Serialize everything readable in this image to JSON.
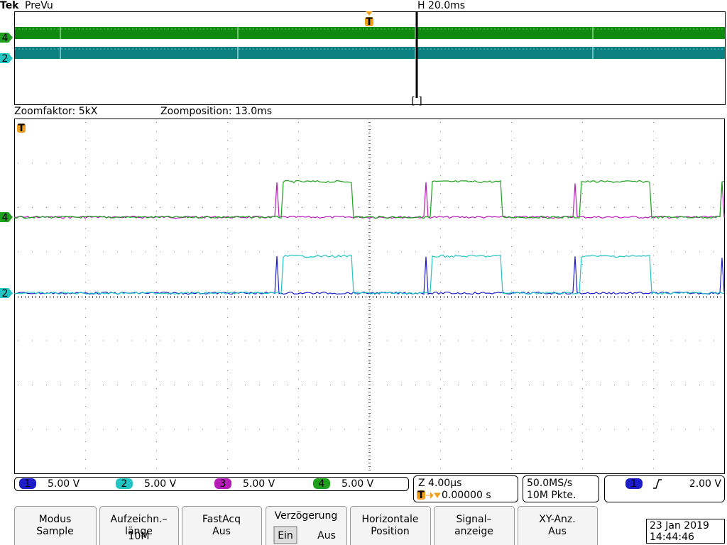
{
  "header": {
    "brand": "Tek",
    "mode": "PreVu",
    "horizontal": "H 20.0ms",
    "trigger_marker": "T"
  },
  "zoom": {
    "factor": "Zoomfaktor: 5kX",
    "position": "Zoomposition: 13.0ms"
  },
  "channels": [
    {
      "number": "1",
      "scale": "5.00 V",
      "color": "#1c1cc8"
    },
    {
      "number": "2",
      "scale": "5.00 V",
      "color": "#22c4c4"
    },
    {
      "number": "3",
      "scale": "5.00 V",
      "color": "#b81cb8"
    },
    {
      "number": "4",
      "scale": "5.00 V",
      "color": "#1ea01e"
    }
  ],
  "status": {
    "zoom_scale": "Z 4.00µs",
    "trigger_position": "0.00000 s",
    "sample_rate": "50.0MS/s",
    "record": "10M Pkte.",
    "trigger_channel": "1",
    "trigger_level": "2.00 V"
  },
  "menu": [
    {
      "label": "Modus",
      "value": "Sample"
    },
    {
      "label": "Aufzeichn.–\nlänge",
      "value": "10M"
    },
    {
      "label": "FastAcq",
      "value": "Aus"
    },
    {
      "label": "Verzögerung",
      "options": [
        "Ein",
        "Aus"
      ]
    },
    {
      "label": "Horizontale\nPosition"
    },
    {
      "label": "Signal–\nanzeige"
    },
    {
      "label": "XY-Anz.",
      "value": "Aus"
    }
  ],
  "datetime": {
    "date": "23 Jan  2019",
    "time": "14:44:46"
  }
}
